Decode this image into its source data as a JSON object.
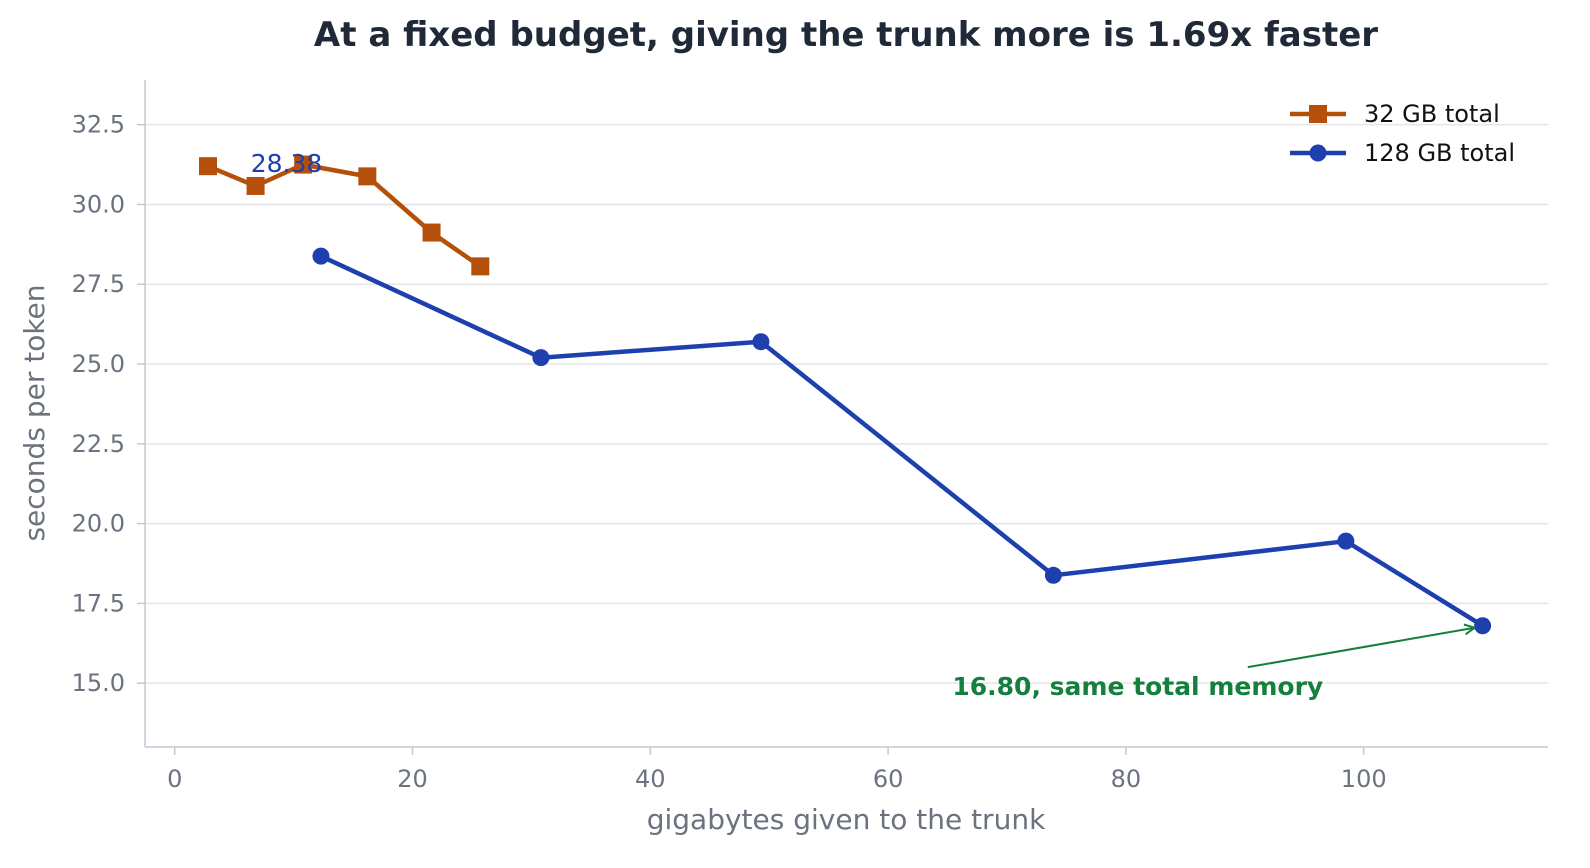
{
  "chart_data": {
    "type": "line",
    "title": "At a fixed budget, giving the trunk more is 1.69x faster",
    "xlabel": "gigabytes given to the trunk",
    "ylabel": "seconds per token",
    "xlim": [
      -2.5,
      115.5
    ],
    "ylim": [
      13.0,
      33.9
    ],
    "xticks": [
      0,
      20,
      40,
      60,
      80,
      100
    ],
    "yticks": [
      15.0,
      17.5,
      20.0,
      22.5,
      25.0,
      27.5,
      30.0,
      32.5
    ],
    "xtick_labels": [
      "0",
      "20",
      "40",
      "60",
      "80",
      "100"
    ],
    "ytick_labels": [
      "15.0",
      "17.5",
      "20.0",
      "22.5",
      "25.0",
      "27.5",
      "30.0",
      "32.5"
    ],
    "grid": "horizontal",
    "legend_position": "top-right",
    "series": [
      {
        "name": "32 GB total",
        "color": "#b5500b",
        "marker": "square",
        "x": [
          2.8,
          6.8,
          10.8,
          16.2,
          21.6,
          25.7
        ],
        "y": [
          31.2,
          30.58,
          31.25,
          30.88,
          29.12,
          28.06
        ]
      },
      {
        "name": "128 GB total",
        "color": "#1e40af",
        "marker": "circle",
        "x": [
          12.3,
          30.8,
          49.3,
          73.9,
          98.5,
          110.0
        ],
        "y": [
          28.38,
          25.2,
          25.7,
          18.38,
          19.45,
          16.8
        ]
      }
    ],
    "annotations": [
      {
        "text": "28.38",
        "color": "#1e40af",
        "x": 9.4,
        "y": 31.3
      },
      {
        "text": "16.80, same total memory",
        "color": "#15803d",
        "x": 81.0,
        "y": 15.0,
        "arrow_to": [
          110.0,
          16.8
        ]
      }
    ]
  }
}
